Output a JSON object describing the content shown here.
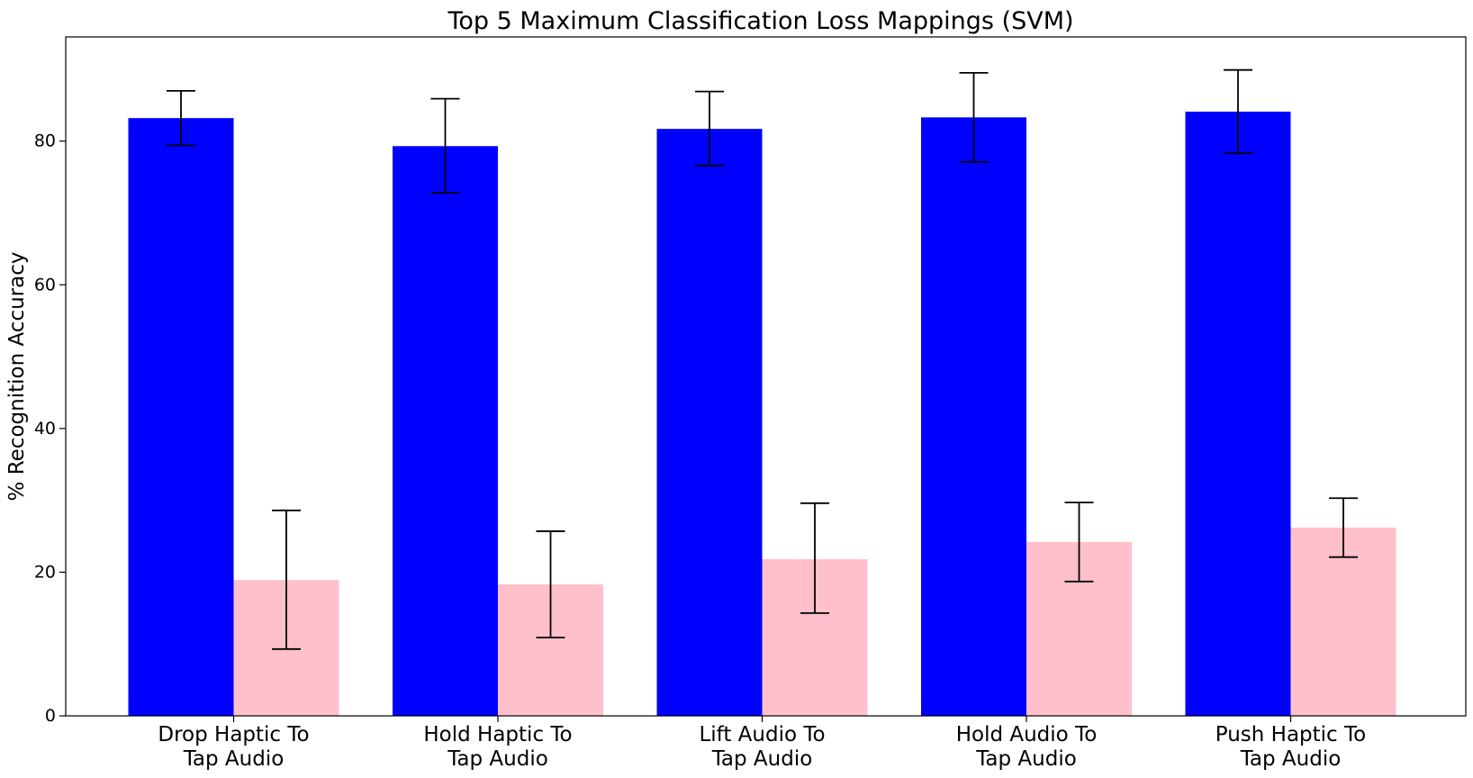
{
  "chart_data": {
    "type": "bar",
    "title": "Top 5 Maximum Classification Loss Mappings (SVM)",
    "xlabel": "",
    "ylabel": "% Recognition Accuracy",
    "ylim": [
      0,
      94.5
    ],
    "yticks": [
      0,
      20,
      40,
      60,
      80
    ],
    "categories": [
      [
        "Drop Haptic To",
        "Tap Audio"
      ],
      [
        "Hold Haptic To",
        "Tap Audio"
      ],
      [
        "Lift Audio To",
        "Tap Audio"
      ],
      [
        "Hold Audio To",
        "Tap Audio"
      ],
      [
        "Push Haptic To",
        "Tap Audio"
      ]
    ],
    "series": [
      {
        "color": "#0000ff",
        "values": [
          83.2,
          79.3,
          81.7,
          83.3,
          84.1
        ],
        "error_low": [
          79.4,
          72.8,
          76.6,
          77.1,
          78.3
        ],
        "error_high": [
          87.0,
          85.9,
          86.9,
          89.5,
          89.9
        ]
      },
      {
        "color": "#ffc0cb",
        "values": [
          18.9,
          18.3,
          21.8,
          24.2,
          26.2
        ],
        "error_low": [
          9.3,
          10.9,
          14.3,
          18.7,
          22.1
        ],
        "error_high": [
          28.6,
          25.7,
          29.6,
          29.7,
          30.3
        ]
      }
    ],
    "grid": false,
    "legend": "none"
  }
}
